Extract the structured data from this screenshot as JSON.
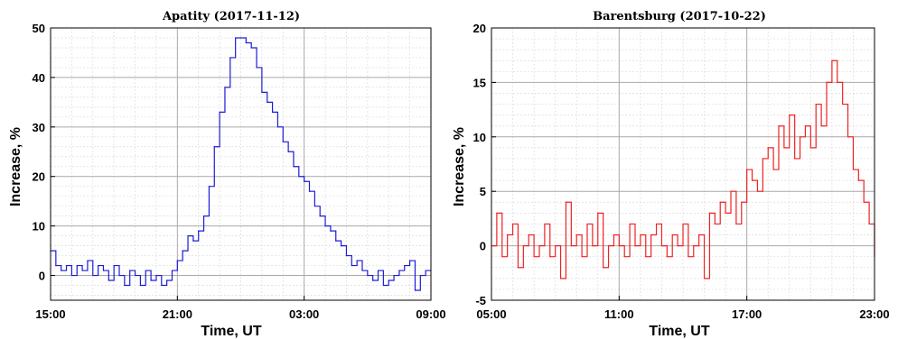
{
  "chart_data": [
    {
      "type": "line",
      "title": "Apatity (2017-11-12)",
      "xlabel": "Time, UT",
      "ylabel": "Increase, %",
      "xlim": [
        0,
        18
      ],
      "ylim": [
        -5,
        50
      ],
      "xticks": [
        0,
        6,
        12,
        18
      ],
      "xtick_labels": [
        "15:00",
        "21:00",
        "03:00",
        "09:00"
      ],
      "yticks": [
        0,
        10,
        20,
        30,
        40,
        50
      ],
      "ytick_labels": [
        "0",
        "10",
        "20",
        "30",
        "40",
        "50"
      ],
      "grid": true,
      "color": "#1c1cd6",
      "step": true,
      "series": [
        {
          "x": [
            0.0,
            0.25,
            0.5,
            0.75,
            1.0,
            1.25,
            1.5,
            1.75,
            2.0,
            2.25,
            2.5,
            2.75,
            3.0,
            3.25,
            3.5,
            3.75,
            4.0,
            4.25,
            4.5,
            4.75,
            5.0,
            5.25,
            5.5,
            5.75,
            6.0,
            6.25,
            6.5,
            6.75,
            7.0,
            7.25,
            7.5,
            7.75,
            8.0,
            8.25,
            8.5,
            8.75,
            9.0,
            9.25,
            9.5,
            9.75,
            10.0,
            10.25,
            10.5,
            10.75,
            11.0,
            11.25,
            11.5,
            11.75,
            12.0,
            12.25,
            12.5,
            12.75,
            13.0,
            13.25,
            13.5,
            13.75,
            14.0,
            14.25,
            14.5,
            14.75,
            15.0,
            15.25,
            15.5,
            15.75,
            16.0,
            16.25,
            16.5,
            16.75,
            17.0,
            17.25,
            17.5,
            17.75,
            18.0
          ],
          "y": [
            5,
            2,
            1,
            2,
            0,
            2,
            1,
            3,
            0,
            2,
            1,
            -1,
            2,
            0,
            -2,
            1,
            0,
            -2,
            1,
            -1,
            0,
            -2,
            -1,
            1,
            3,
            5,
            8,
            7,
            9,
            12,
            18,
            26,
            33,
            38,
            44,
            48,
            48,
            47,
            46,
            42,
            37,
            35,
            33,
            30,
            27,
            25,
            22,
            20,
            19,
            17,
            14,
            12,
            10,
            9,
            7,
            6,
            4,
            2,
            3,
            1,
            0,
            -1,
            1,
            -2,
            -1,
            0,
            1,
            2,
            3,
            -3,
            0,
            1,
            1
          ]
        }
      ]
    },
    {
      "type": "line",
      "title": "Barentsburg (2017-10-22)",
      "xlabel": "Time, UT",
      "ylabel": "Increase, %",
      "xlim": [
        0,
        18
      ],
      "ylim": [
        -5,
        20
      ],
      "xticks": [
        0,
        6,
        12,
        18
      ],
      "xtick_labels": [
        "05:00",
        "11:00",
        "17:00",
        "23:00"
      ],
      "yticks": [
        -5,
        0,
        5,
        10,
        15,
        20
      ],
      "ytick_labels": [
        "-5",
        "0",
        "5",
        "10",
        "15",
        "20"
      ],
      "grid": true,
      "color": "#ee2222",
      "step": true,
      "series": [
        {
          "x": [
            0.0,
            0.25,
            0.5,
            0.75,
            1.0,
            1.25,
            1.5,
            1.75,
            2.0,
            2.25,
            2.5,
            2.75,
            3.0,
            3.25,
            3.5,
            3.75,
            4.0,
            4.25,
            4.5,
            4.75,
            5.0,
            5.25,
            5.5,
            5.75,
            6.0,
            6.25,
            6.5,
            6.75,
            7.0,
            7.25,
            7.5,
            7.75,
            8.0,
            8.25,
            8.5,
            8.75,
            9.0,
            9.25,
            9.5,
            9.75,
            10.0,
            10.25,
            10.5,
            10.75,
            11.0,
            11.25,
            11.5,
            11.75,
            12.0,
            12.25,
            12.5,
            12.75,
            13.0,
            13.25,
            13.5,
            13.75,
            14.0,
            14.25,
            14.5,
            14.75,
            15.0,
            15.25,
            15.5,
            15.75,
            16.0,
            16.25,
            16.5,
            16.75,
            17.0,
            17.25,
            17.5,
            17.75,
            18.0
          ],
          "y": [
            0,
            3,
            -1,
            1,
            2,
            -2,
            0,
            1,
            -1,
            0,
            2,
            -1,
            0,
            -3,
            4,
            0,
            1,
            -1,
            2,
            0,
            3,
            -2,
            0,
            1,
            0,
            -1,
            2,
            0,
            1,
            -1,
            1,
            2,
            0,
            -1,
            1,
            0,
            2,
            -1,
            0,
            1,
            -3,
            3,
            2,
            4,
            3,
            5,
            2,
            4,
            7,
            6,
            5,
            8,
            9,
            7,
            11,
            9,
            12,
            8,
            10,
            11,
            9,
            13,
            11,
            15,
            17,
            15,
            13,
            10,
            7,
            6,
            4,
            2,
            -1
          ]
        }
      ]
    }
  ]
}
